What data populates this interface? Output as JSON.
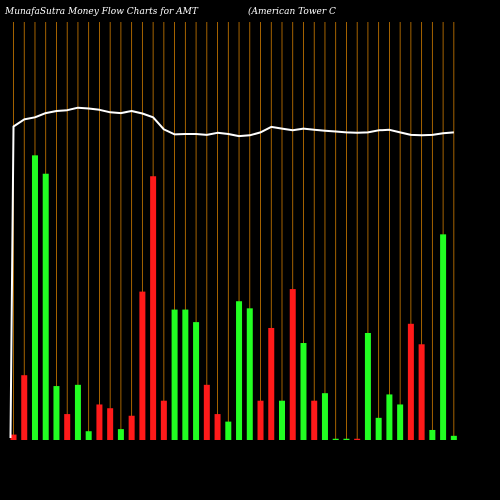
{
  "header": {
    "site_title": "MunafaSutra  Money Flow  Charts for AMT",
    "company": "(American  Tower  C"
  },
  "colors": {
    "background": "#000000",
    "grid": "#cc7a00",
    "up": "#22ff22",
    "down": "#ff1a1a",
    "line": "#ffffff"
  },
  "chart_data": {
    "type": "bar",
    "ylim": [
      0,
      100
    ],
    "bars": [
      {
        "color": "down",
        "value": 1.3
      },
      {
        "color": "down",
        "value": 15.5
      },
      {
        "color": "up",
        "value": 68.1
      },
      {
        "color": "up",
        "value": 63.7
      },
      {
        "color": "up",
        "value": 12.9
      },
      {
        "color": "down",
        "value": 6.2
      },
      {
        "color": "up",
        "value": 13.2
      },
      {
        "color": "up",
        "value": 2.1
      },
      {
        "color": "down",
        "value": 8.5
      },
      {
        "color": "down",
        "value": 7.6
      },
      {
        "color": "up",
        "value": 2.6
      },
      {
        "color": "down",
        "value": 5.8
      },
      {
        "color": "down",
        "value": 35.5
      },
      {
        "color": "down",
        "value": 63.1
      },
      {
        "color": "down",
        "value": 9.4
      },
      {
        "color": "up",
        "value": 31.2
      },
      {
        "color": "up",
        "value": 31.2
      },
      {
        "color": "up",
        "value": 28.2
      },
      {
        "color": "down",
        "value": 13.2
      },
      {
        "color": "down",
        "value": 6.2
      },
      {
        "color": "up",
        "value": 4.4
      },
      {
        "color": "up",
        "value": 33.2
      },
      {
        "color": "up",
        "value": 31.5
      },
      {
        "color": "down",
        "value": 9.4
      },
      {
        "color": "down",
        "value": 26.8
      },
      {
        "color": "up",
        "value": 9.4
      },
      {
        "color": "down",
        "value": 36.1
      },
      {
        "color": "up",
        "value": 23.2
      },
      {
        "color": "down",
        "value": 9.4
      },
      {
        "color": "up",
        "value": 11.2
      },
      {
        "color": "up",
        "value": 0.3
      },
      {
        "color": "up",
        "value": 0.3
      },
      {
        "color": "down",
        "value": 0.3
      },
      {
        "color": "up",
        "value": 25.6
      },
      {
        "color": "up",
        "value": 5.3
      },
      {
        "color": "up",
        "value": 10.9
      },
      {
        "color": "up",
        "value": 8.5
      },
      {
        "color": "down",
        "value": 27.8
      },
      {
        "color": "down",
        "value": 22.9
      },
      {
        "color": "up",
        "value": 2.4
      },
      {
        "color": "up",
        "value": 49.2
      },
      {
        "color": "up",
        "value": 1.0
      }
    ],
    "line": [
      75.0,
      76.7,
      77.2,
      78.2,
      78.7,
      78.9,
      79.5,
      79.3,
      79.0,
      78.4,
      78.2,
      78.7,
      78.1,
      77.2,
      74.3,
      73.1,
      73.2,
      73.2,
      73.0,
      73.5,
      73.2,
      72.7,
      72.9,
      73.6,
      74.9,
      74.5,
      74.1,
      74.5,
      74.2,
      74.0,
      73.8,
      73.6,
      73.5,
      73.6,
      74.1,
      74.2,
      73.6,
      73.0,
      72.9,
      73.0,
      73.4,
      73.6
    ]
  }
}
